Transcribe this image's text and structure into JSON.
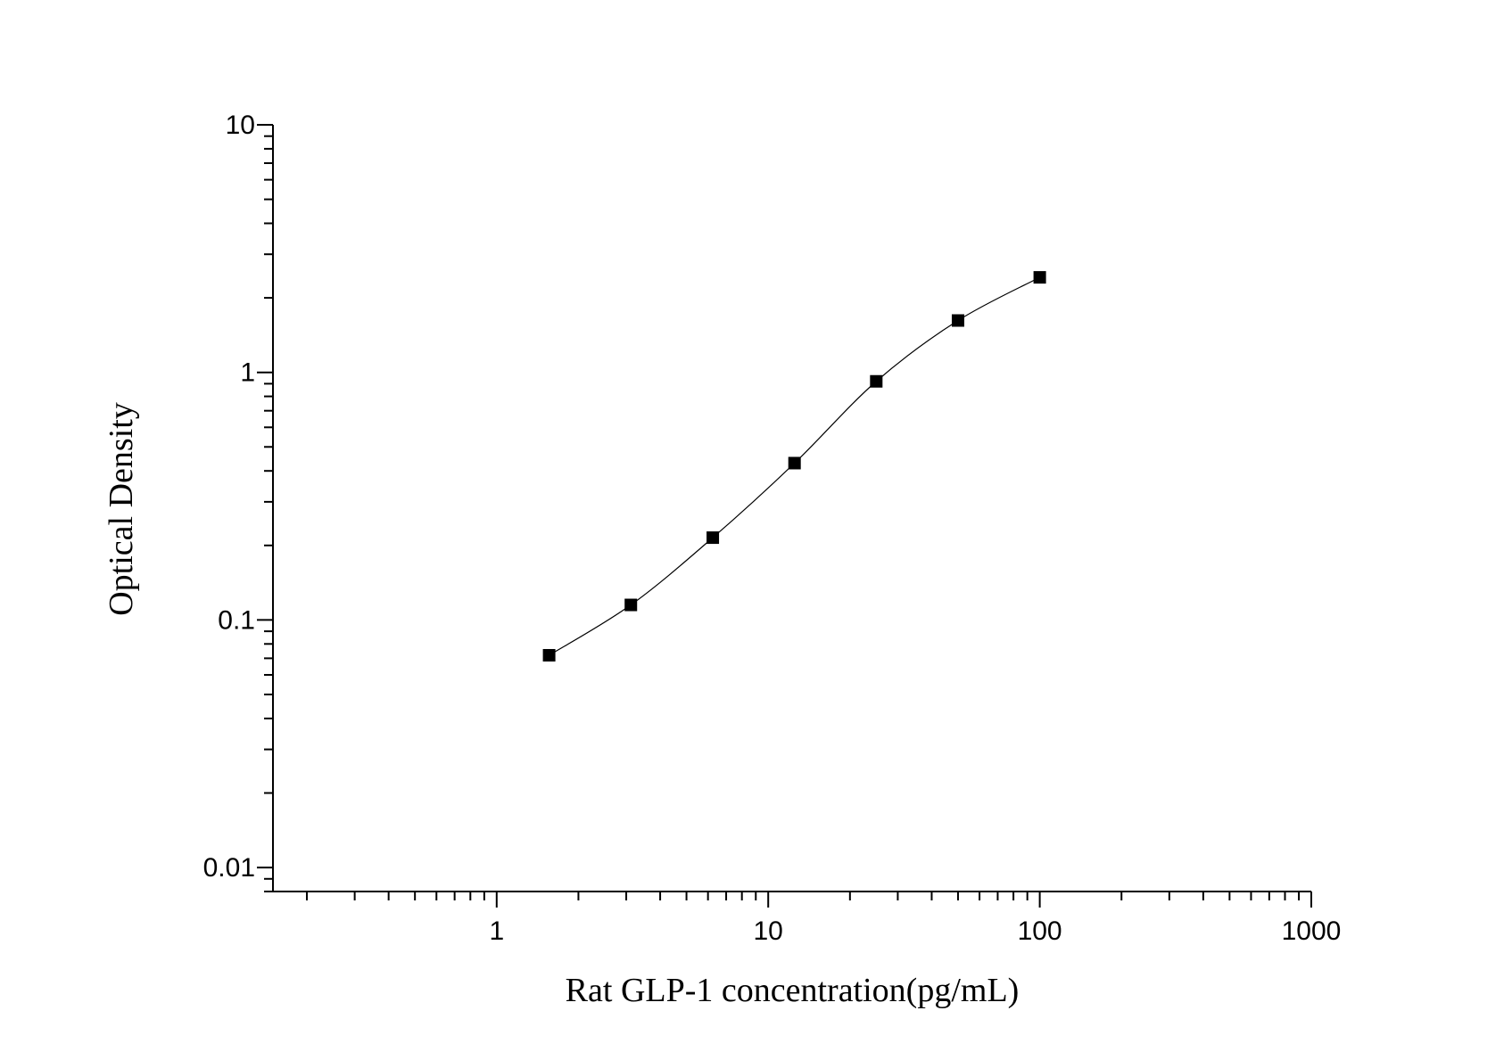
{
  "chart_data": {
    "type": "scatter",
    "title": "",
    "xlabel": "Rat GLP-1 concentration(pg/mL)",
    "ylabel": "Optical Density",
    "x_scale": "log",
    "y_scale": "log",
    "xlim": [
      0.15,
      1000
    ],
    "ylim": [
      0.008,
      10
    ],
    "x_ticks": [
      "1",
      "10",
      "100",
      "1000"
    ],
    "y_ticks": [
      "10",
      "1",
      "0.1",
      "0.01"
    ],
    "grid": false,
    "legend": "none",
    "marker": "square",
    "marker_color": "#000000",
    "fit_line": "smooth curve through points",
    "series": [
      {
        "x": [
          1.56,
          3.12,
          6.25,
          12.5,
          25,
          50,
          100
        ],
        "y": [
          0.072,
          0.115,
          0.215,
          0.43,
          0.92,
          1.62,
          2.42
        ]
      }
    ]
  }
}
